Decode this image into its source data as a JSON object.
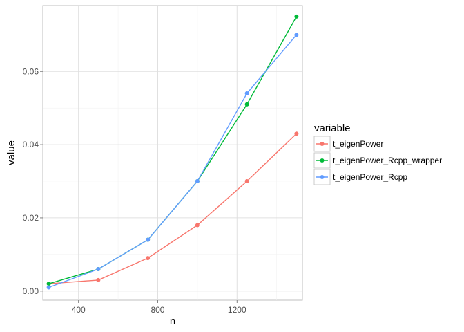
{
  "chart_data": {
    "type": "line",
    "xlabel": "n",
    "ylabel": "value",
    "xlim": [
      220,
      1530
    ],
    "ylim": [
      -0.0025,
      0.078
    ],
    "xticks": [
      400,
      800,
      1200
    ],
    "xtick_labels": [
      "400",
      "800",
      "1200"
    ],
    "yticks": [
      0.0,
      0.02,
      0.04,
      0.06
    ],
    "ytick_labels": [
      "0.00",
      "0.02",
      "0.04",
      "0.06"
    ],
    "grid": true,
    "legend": {
      "title": "variable",
      "placement": "right"
    },
    "x": [
      250,
      500,
      750,
      1000,
      1250,
      1500
    ],
    "series": [
      {
        "name": "t_eigenPower",
        "color": "#F8766D",
        "values": [
          0.002,
          0.003,
          0.009,
          0.018,
          0.03,
          0.043
        ]
      },
      {
        "name": "t_eigenPower_Rcpp_wrapper",
        "color": "#00BA38",
        "values": [
          0.002,
          0.006,
          0.014,
          0.03,
          0.051,
          0.075
        ]
      },
      {
        "name": "t_eigenPower_Rcpp",
        "color": "#619CFF",
        "values": [
          0.001,
          0.006,
          0.014,
          0.03,
          0.054,
          0.07
        ]
      }
    ]
  }
}
